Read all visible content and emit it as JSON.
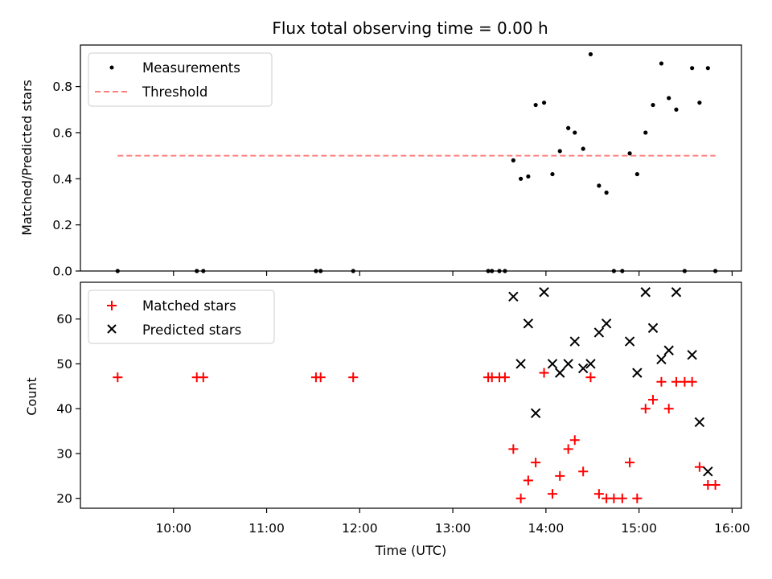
{
  "chart_data": [
    {
      "type": "scatter",
      "title": "Flux total observing time = 0.00 h",
      "xlabel": "",
      "ylabel": "Matched/Predicted stars",
      "xlim": [
        9.0,
        16.1
      ],
      "ylim": [
        0.0,
        0.98
      ],
      "yticks": [
        0.0,
        0.2,
        0.4,
        0.6,
        0.8
      ],
      "ytick_labels": [
        "0.0",
        "0.2",
        "0.4",
        "0.6",
        "0.8"
      ],
      "xticks": [
        10,
        11,
        12,
        13,
        14,
        15,
        16
      ],
      "legend": [
        {
          "label": "Measurements",
          "marker": "dot",
          "color": "#000000"
        },
        {
          "label": "Threshold",
          "marker": "dashed-line",
          "color": "#ff7f7f"
        }
      ],
      "legend_loc": "upper left",
      "threshold": {
        "value": 0.5,
        "x_start": 9.4,
        "x_end": 15.82,
        "color": "#ff7f7f"
      },
      "series": [
        {
          "name": "Measurements",
          "color": "#000000",
          "x": [
            9.4,
            10.25,
            10.32,
            11.53,
            11.58,
            11.93,
            13.38,
            13.42,
            13.5,
            13.56,
            13.65,
            13.73,
            13.81,
            13.89,
            13.98,
            14.07,
            14.15,
            14.24,
            14.31,
            14.4,
            14.48,
            14.57,
            14.65,
            14.73,
            14.82,
            14.9,
            14.98,
            15.07,
            15.15,
            15.24,
            15.32,
            15.4,
            15.49,
            15.57,
            15.65,
            15.74,
            15.82
          ],
          "y": [
            0.0,
            0.0,
            0.0,
            0.0,
            0.0,
            0.0,
            0.0,
            0.0,
            0.0,
            0.0,
            0.48,
            0.4,
            0.41,
            0.72,
            0.73,
            0.42,
            0.52,
            0.62,
            0.6,
            0.53,
            0.94,
            0.37,
            0.34,
            0.0,
            0.0,
            0.51,
            0.42,
            0.6,
            0.72,
            0.9,
            0.75,
            0.7,
            0.0,
            0.88,
            0.73,
            0.88,
            0.0
          ]
        }
      ]
    },
    {
      "type": "scatter",
      "title": "",
      "xlabel": "Time (UTC)",
      "ylabel": "Count",
      "xlim": [
        9.0,
        16.1
      ],
      "ylim": [
        17.8,
        68.2
      ],
      "yticks": [
        20,
        30,
        40,
        50,
        60
      ],
      "ytick_labels": [
        "20",
        "30",
        "40",
        "50",
        "60"
      ],
      "xticks": [
        10,
        11,
        12,
        13,
        14,
        15,
        16
      ],
      "xtick_labels": [
        "10:00",
        "11:00",
        "12:00",
        "13:00",
        "14:00",
        "15:00",
        "16:00"
      ],
      "legend": [
        {
          "label": "Matched stars",
          "marker": "plus",
          "color": "#ff0000"
        },
        {
          "label": "Predicted stars",
          "marker": "x",
          "color": "#000000"
        }
      ],
      "legend_loc": "upper left",
      "series": [
        {
          "name": "Matched stars",
          "marker": "plus",
          "color": "#ff0000",
          "x": [
            9.4,
            10.25,
            10.32,
            11.53,
            11.58,
            11.93,
            13.38,
            13.42,
            13.5,
            13.56,
            13.65,
            13.73,
            13.81,
            13.89,
            13.98,
            14.07,
            14.15,
            14.24,
            14.31,
            14.4,
            14.48,
            14.57,
            14.65,
            14.73,
            14.82,
            14.9,
            14.98,
            15.07,
            15.15,
            15.24,
            15.32,
            15.4,
            15.49,
            15.57,
            15.65,
            15.74,
            15.82
          ],
          "y": [
            47,
            47,
            47,
            47,
            47,
            47,
            47,
            47,
            47,
            47,
            31,
            20,
            24,
            28,
            48,
            21,
            25,
            31,
            33,
            26,
            47,
            21,
            20,
            20,
            20,
            28,
            20,
            40,
            42,
            46,
            40,
            46,
            46,
            46,
            27,
            23,
            23
          ]
        },
        {
          "name": "Predicted stars",
          "marker": "x",
          "color": "#000000",
          "x": [
            13.65,
            13.73,
            13.81,
            13.89,
            13.98,
            14.07,
            14.15,
            14.24,
            14.31,
            14.4,
            14.48,
            14.57,
            14.65,
            14.9,
            14.98,
            15.07,
            15.15,
            15.24,
            15.32,
            15.4,
            15.57,
            15.65,
            15.74
          ],
          "y": [
            65,
            50,
            59,
            39,
            66,
            50,
            48,
            50,
            55,
            49,
            50,
            57,
            59,
            55,
            48,
            66,
            58,
            51,
            53,
            66,
            52,
            37,
            26
          ]
        }
      ]
    }
  ]
}
